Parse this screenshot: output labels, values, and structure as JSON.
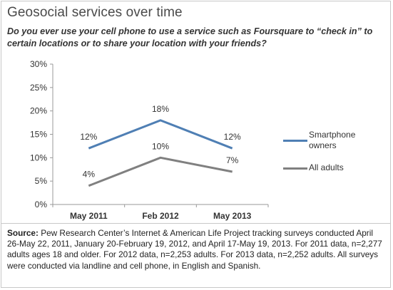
{
  "title": "Geosocial services over time",
  "subtitle": "Do you ever use your cell phone to use a service such as Foursquare to “check in” to certain locations or to share your location with your friends?",
  "source": {
    "label": "Source:",
    "text": " Pew Research Center’s Internet & American Life Project tracking surveys conducted April 26-May 22, 2011, January 20-February 19, 2012, and April 17-May 19, 2013. For 2011 data, n=2,277 adults ages 18 and older. For 2012 data, n=2,253 adults. For 2013 data, n=2,252 adults. All surveys were conducted via landline and cell phone, in English and Spanish."
  },
  "legend": [
    {
      "label_line1": "Smartphone",
      "label_line2": "owners",
      "color": "#4f7fb4"
    },
    {
      "label_line1": "All adults",
      "label_line2": "",
      "color": "#808080"
    }
  ],
  "chart_data": {
    "type": "line",
    "categories": [
      "May 2011",
      "Feb 2012",
      "May 2013"
    ],
    "series": [
      {
        "name": "Smartphone owners",
        "values": [
          12,
          18,
          12
        ],
        "labels": [
          "12%",
          "18%",
          "12%"
        ],
        "color": "#4f7fb4"
      },
      {
        "name": "All adults",
        "values": [
          4,
          10,
          7
        ],
        "labels": [
          "4%",
          "10%",
          "7%"
        ],
        "color": "#808080"
      }
    ],
    "ylim": [
      0,
      30
    ],
    "yticks": [
      0,
      5,
      10,
      15,
      20,
      25,
      30
    ],
    "ytick_labels": [
      "0%",
      "5%",
      "10%",
      "15%",
      "20%",
      "25%",
      "30%"
    ],
    "grid": false,
    "legend_position": "right"
  }
}
